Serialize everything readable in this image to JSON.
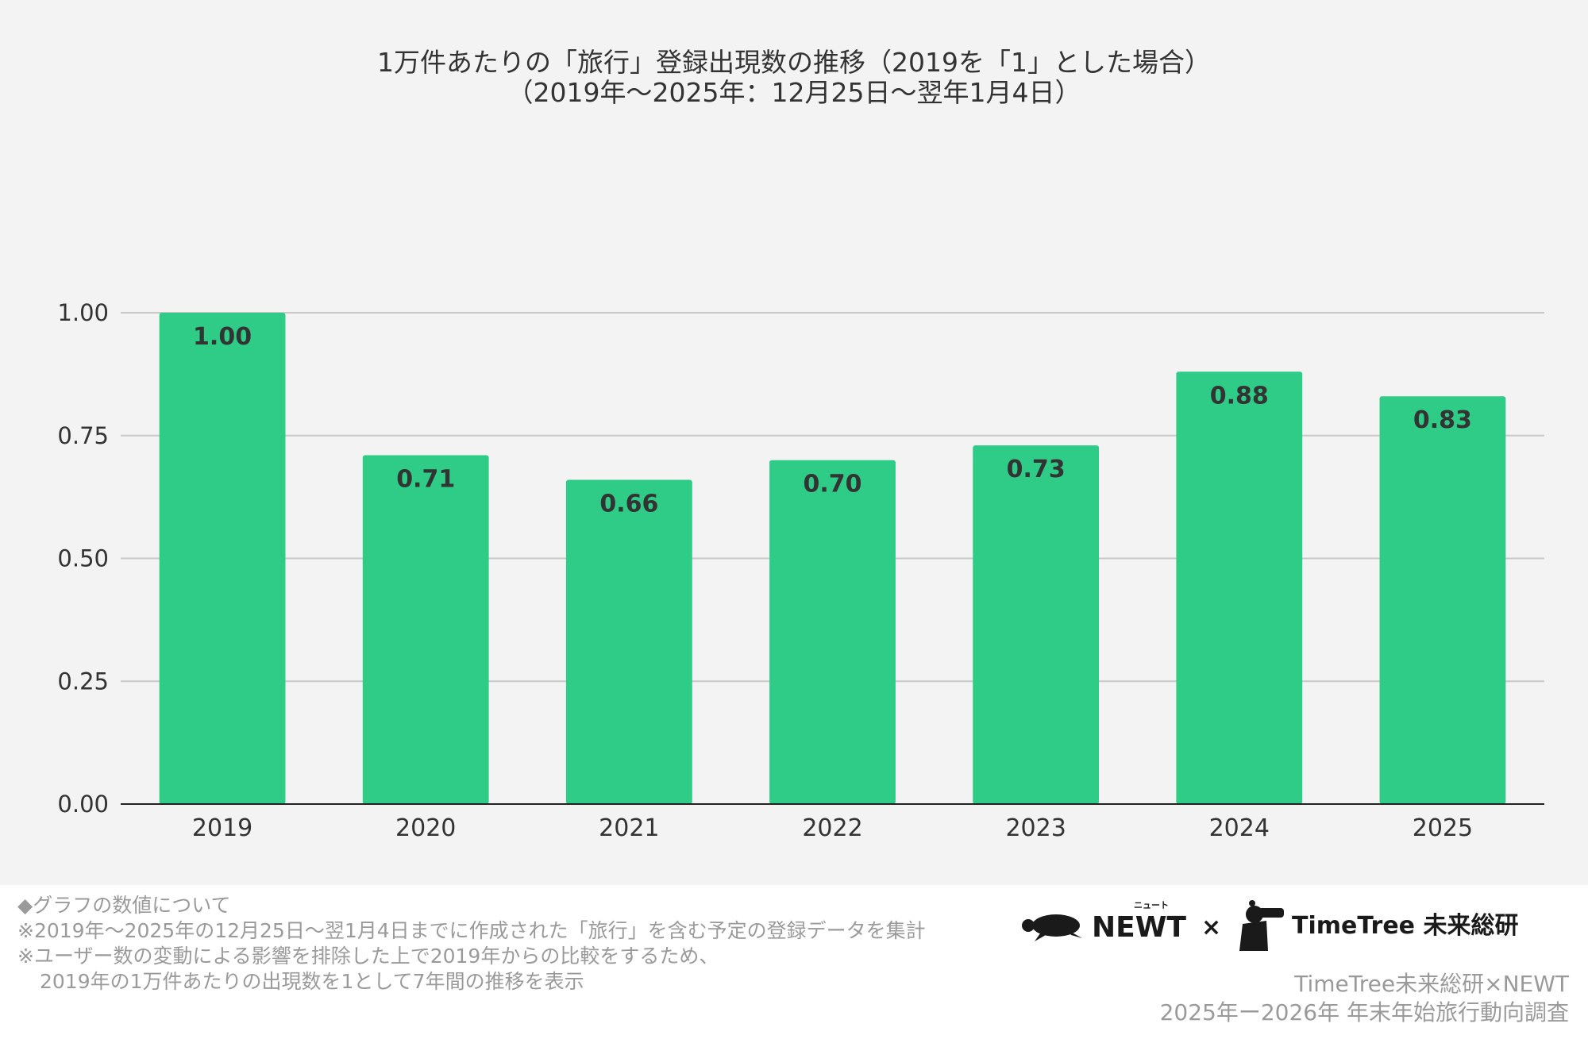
{
  "chart_data": {
    "type": "bar",
    "title": "1万件あたりの「旅行」登録出現数の推移（2019を「1」とした場合）",
    "subtitle": "（2019年〜2025年：12月25日〜翌年1月4日）",
    "categories": [
      "2019",
      "2020",
      "2021",
      "2022",
      "2023",
      "2024",
      "2025"
    ],
    "values": [
      1.0,
      0.71,
      0.66,
      0.7,
      0.73,
      0.88,
      0.83
    ],
    "value_labels": [
      "1.00",
      "0.71",
      "0.66",
      "0.70",
      "0.73",
      "0.88",
      "0.83"
    ],
    "y_ticks": [
      "0.00",
      "0.25",
      "0.50",
      "0.75",
      "1.00"
    ],
    "ylim": [
      0,
      1.0
    ],
    "grid": true,
    "xlabel": "",
    "ylabel": "",
    "bar_color": "#2ecc87"
  },
  "notes": {
    "heading": "◆グラフの数値について",
    "line1": "※2019年〜2025年の12月25日〜翌1月4日までに作成された「旅行」を含む予定の登録データを集計",
    "line2": "※ユーザー数の変動による影響を排除した上で2019年からの比較をするため、",
    "line3": "2019年の1万件あたりの出現数を1として7年間の推移を表示"
  },
  "logos": {
    "newt": "NEWT",
    "newt_ruby": "ニュート",
    "times": "×",
    "timetree": "TimeTree 未来総研"
  },
  "credit": {
    "line1": "TimeTree未来総研×NEWT",
    "line2": "2025年ー2026年 年末年始旅行動向調査"
  }
}
